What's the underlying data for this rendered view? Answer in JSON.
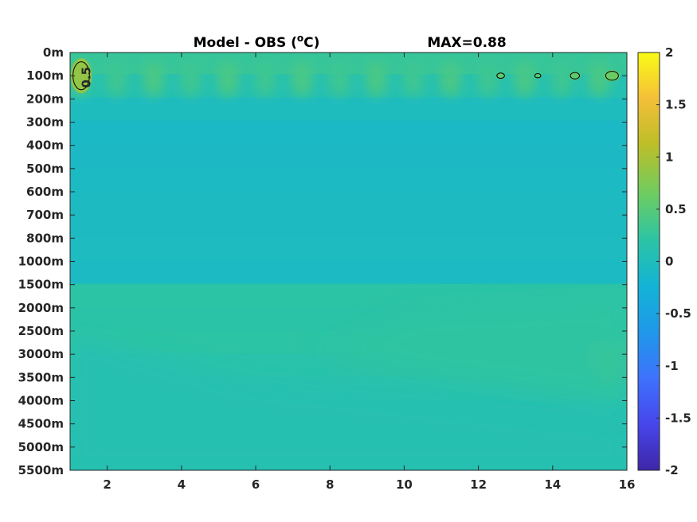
{
  "chart_data": {
    "type": "heatmap",
    "title": "Model - OBS (",
    "title_unit_super": "o",
    "title_unit_tail": "C)",
    "max_label": "MAX=0.88",
    "xlabel": "",
    "ylabel": "",
    "x_ticks": [
      "2",
      "4",
      "6",
      "8",
      "10",
      "12",
      "14",
      "16"
    ],
    "xlim": [
      1,
      16
    ],
    "y_ticks": [
      "0m",
      "100m",
      "200m",
      "300m",
      "400m",
      "500m",
      "600m",
      "700m",
      "800m",
      "1000m",
      "1500m",
      "2000m",
      "2500m",
      "3000m",
      "3500m",
      "4000m",
      "4500m",
      "5000m",
      "5500m"
    ],
    "colorbar": {
      "min": -2,
      "max": 2,
      "ticks": [
        "2",
        "1.5",
        "1",
        "0.5",
        "0",
        "-0.5",
        "-1",
        "-1.5",
        "-2"
      ],
      "colormap": [
        "#3e26a8",
        "#4746eb",
        "#3e72fc",
        "#1f98e9",
        "#13b3d6",
        "#2bc4a5",
        "#6dcc62",
        "#bdbe28",
        "#f4bf39",
        "#f9fb15"
      ]
    },
    "contour_level": "0.5",
    "layers": {
      "upper_rows": [
        0.3,
        0.12,
        0.0,
        -0.08,
        -0.06,
        -0.05,
        -0.04,
        -0.03,
        -0.02,
        -0.05
      ],
      "deep_rows": [
        0.22,
        0.2,
        0.22,
        0.18,
        0.15,
        0.12,
        0.1,
        0.12
      ]
    },
    "warm_spots": [
      {
        "x": 1.3,
        "depth": "100m",
        "value": 0.88
      },
      {
        "x": 12.6,
        "depth": "100m",
        "value": 0.55
      },
      {
        "x": 13.6,
        "depth": "100m",
        "value": 0.52
      },
      {
        "x": 14.6,
        "depth": "100m",
        "value": 0.58
      },
      {
        "x": 15.6,
        "depth": "100m",
        "value": 0.65
      }
    ]
  }
}
